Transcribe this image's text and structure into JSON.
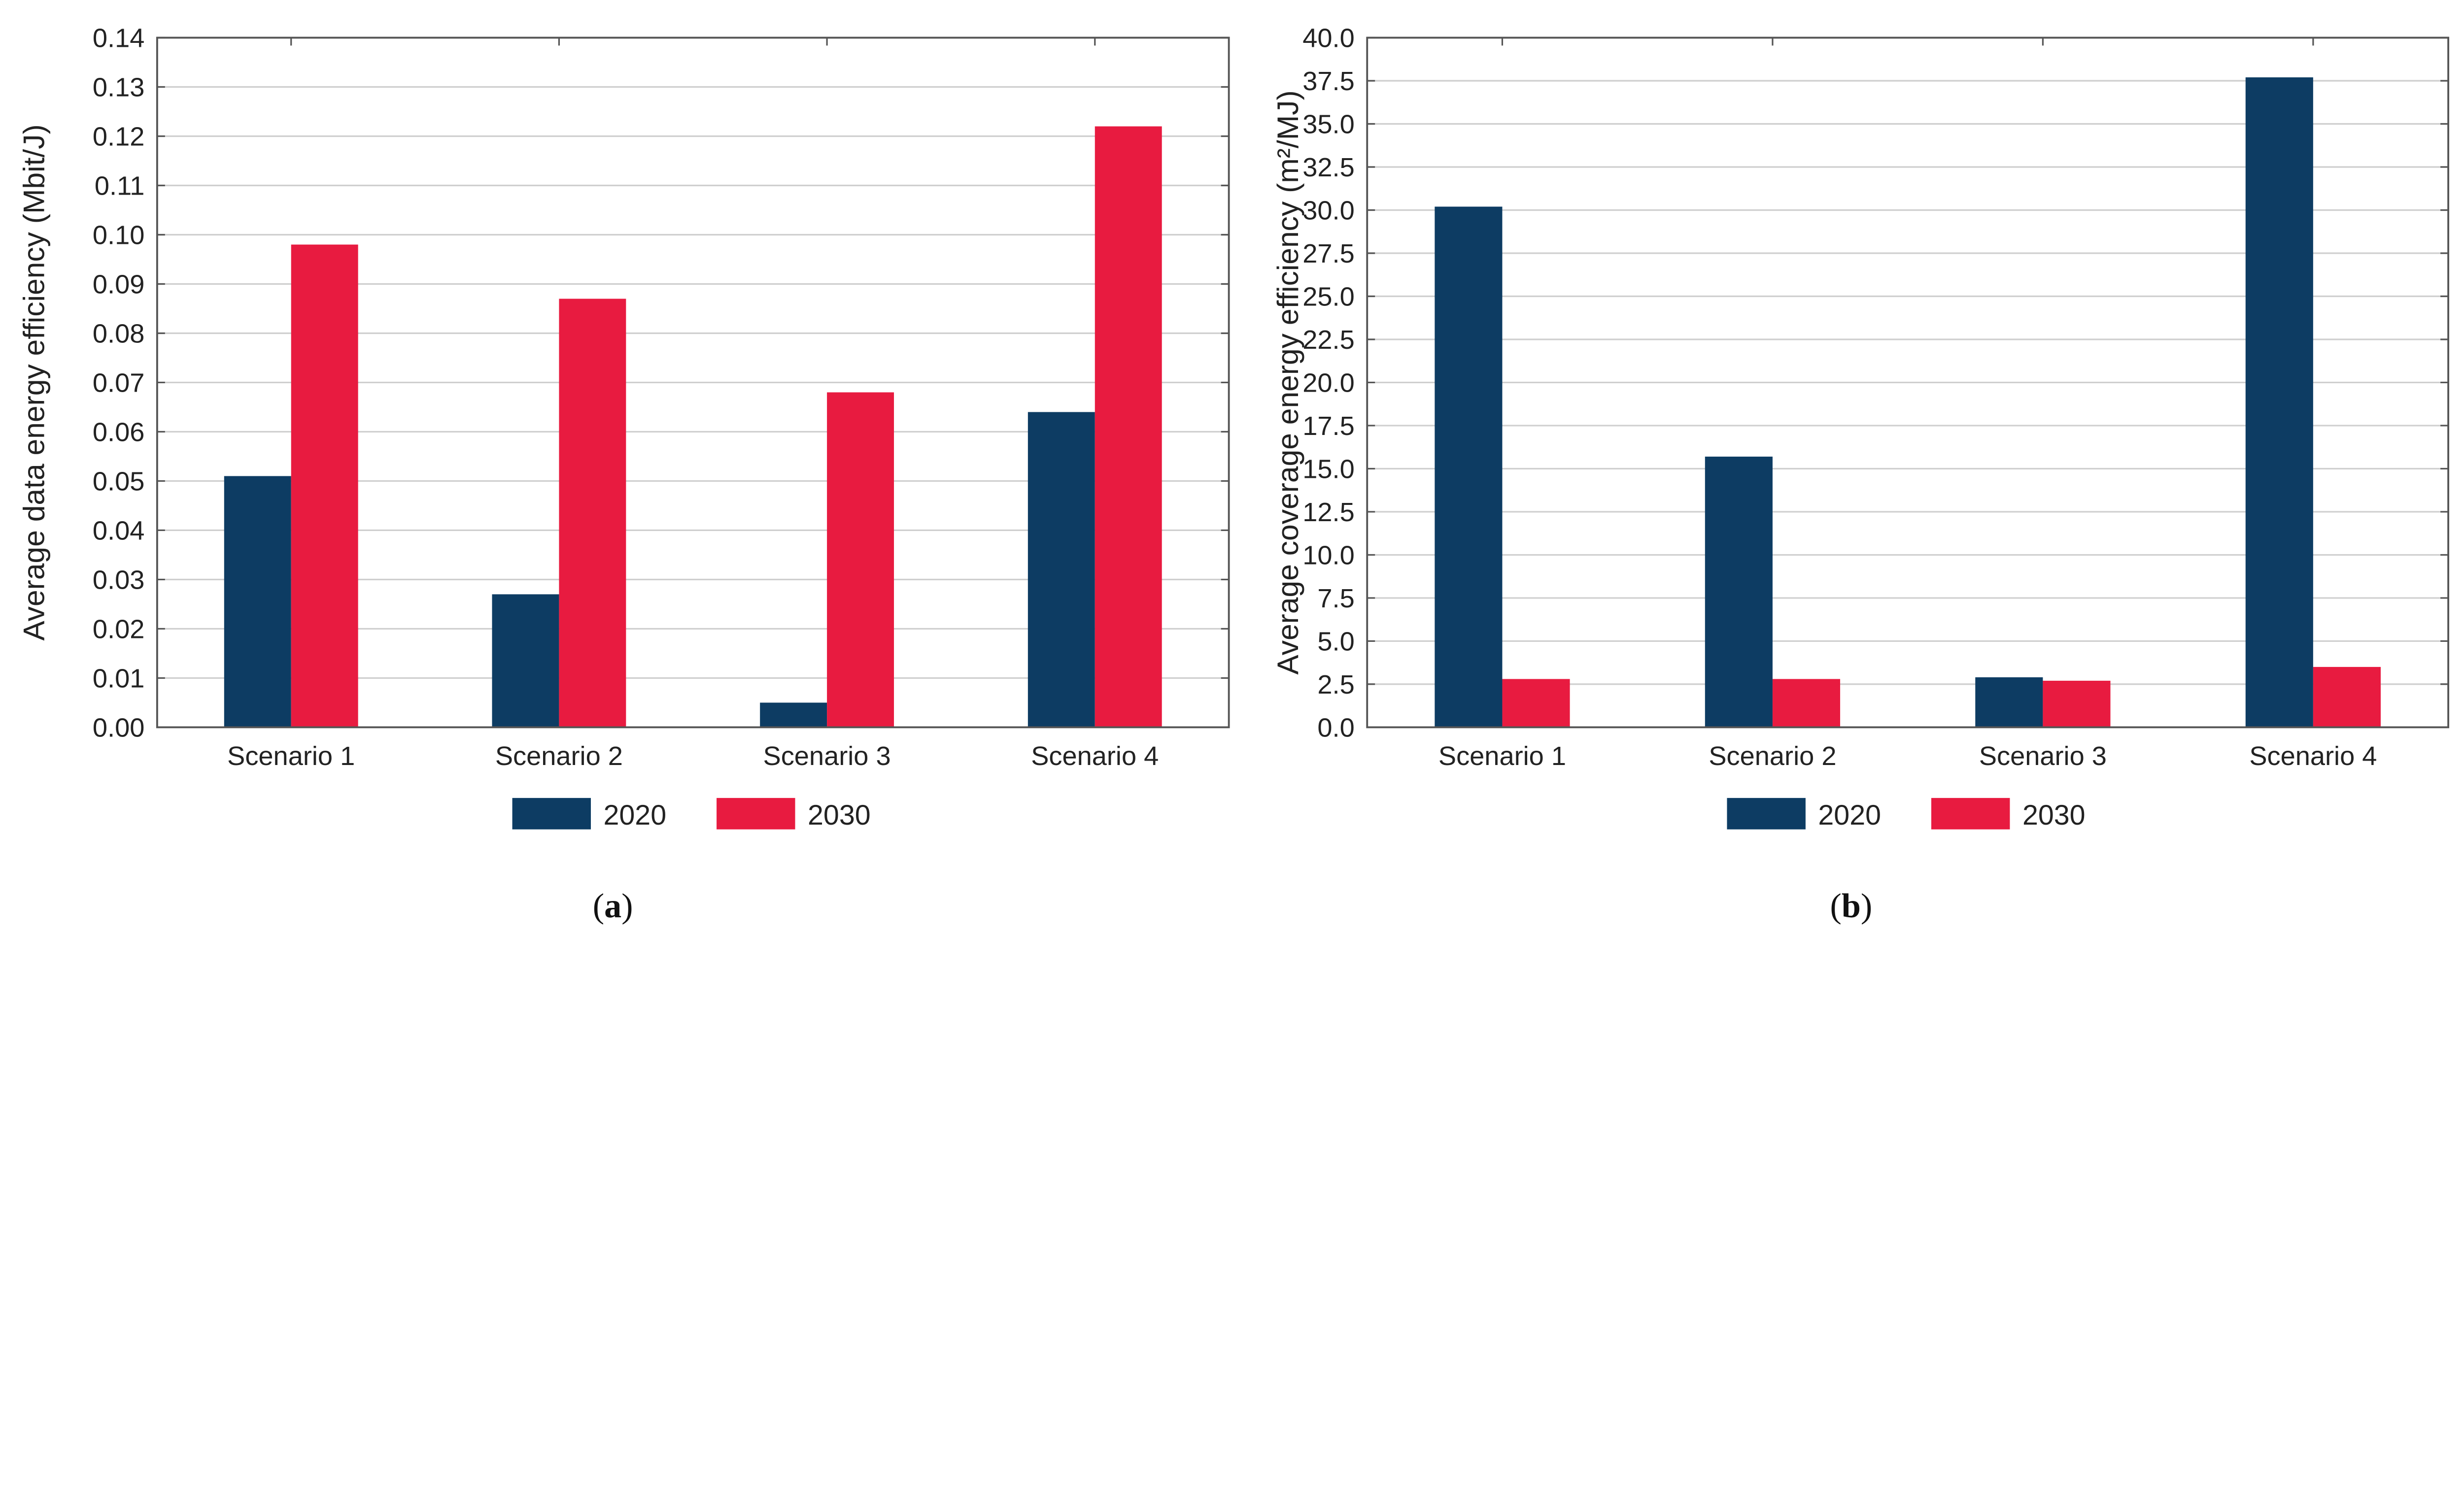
{
  "colors": {
    "2020": "#0d3c63",
    "2030": "#e81b40",
    "grid": "#cfcfcf",
    "axis": "#555555"
  },
  "chart_data": [
    {
      "type": "bar",
      "caption_letter": "a",
      "categories": [
        "Scenario 1",
        "Scenario 2",
        "Scenario 3",
        "Scenario 4"
      ],
      "series": [
        {
          "name": "2020",
          "values": [
            0.051,
            0.027,
            0.005,
            0.064
          ]
        },
        {
          "name": "2030",
          "values": [
            0.098,
            0.087,
            0.068,
            0.122
          ]
        }
      ],
      "xlabel": "",
      "ylabel": "Average data energy efficiency (Mbit/J)",
      "ylim": [
        0,
        0.14
      ],
      "ytick_step": 0.01,
      "ytick_decimals": 2,
      "grid": true,
      "legend": "bottom"
    },
    {
      "type": "bar",
      "caption_letter": "b",
      "categories": [
        "Scenario 1",
        "Scenario 2",
        "Scenario 3",
        "Scenario 4"
      ],
      "series": [
        {
          "name": "2020",
          "values": [
            30.2,
            15.7,
            2.9,
            37.7
          ]
        },
        {
          "name": "2030",
          "values": [
            2.8,
            2.8,
            2.7,
            3.5
          ]
        }
      ],
      "xlabel": "",
      "ylabel": "Average coverage energy efficiency (m²/MJ)",
      "ylim": [
        0,
        40
      ],
      "ytick_step": 2.5,
      "ytick_decimals": 1,
      "grid": true,
      "legend": "bottom"
    }
  ]
}
